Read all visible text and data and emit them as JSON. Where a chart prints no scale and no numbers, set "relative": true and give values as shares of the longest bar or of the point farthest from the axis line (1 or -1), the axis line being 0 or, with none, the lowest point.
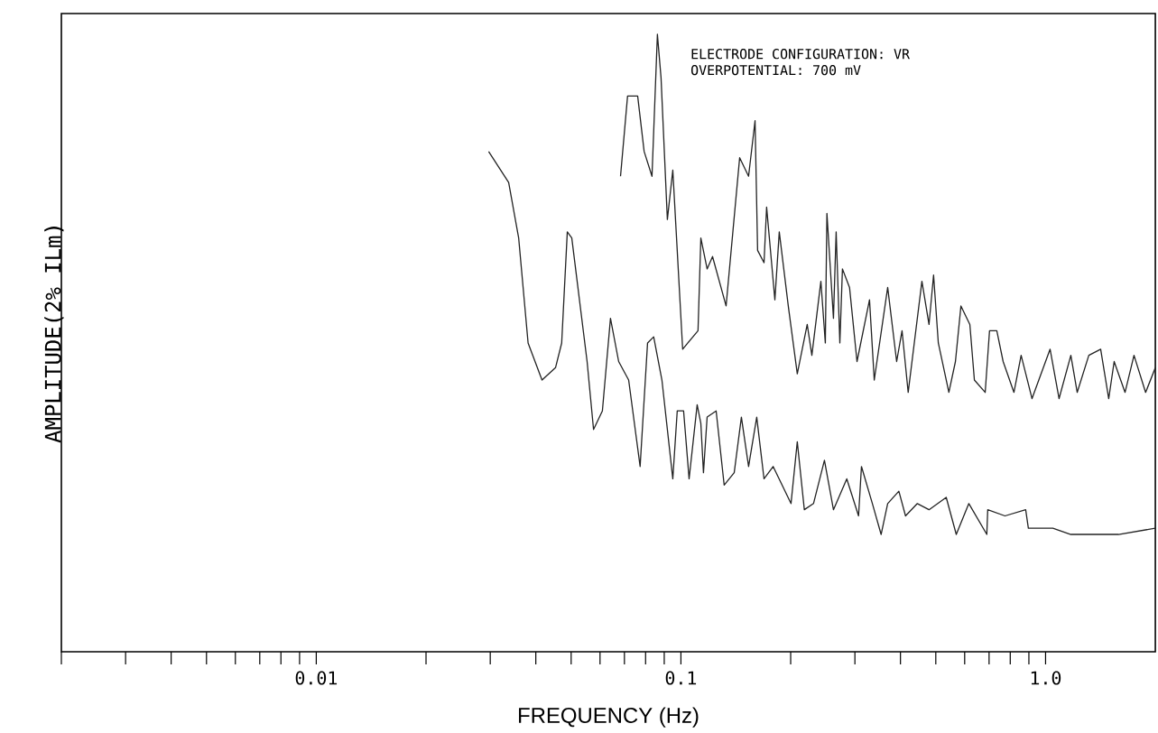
{
  "chart_data": {
    "type": "line",
    "relative": true,
    "log": "x",
    "xlabel": "FREQUENCY (Hz)",
    "ylabel": "AMPLITUDE(2% ILm)",
    "annotations": [
      "ELECTRODE CONFIGURATION: VR",
      "OVERPOTENTIAL: 700 mV"
    ],
    "xlim": [
      0.002,
      2
    ],
    "xticks": [
      {
        "value": 0.002,
        "label": null
      },
      {
        "value": 0.003,
        "label": null
      },
      {
        "value": 0.004,
        "label": null
      },
      {
        "value": 0.005,
        "label": null
      },
      {
        "value": 0.006,
        "label": null
      },
      {
        "value": 0.007,
        "label": null
      },
      {
        "value": 0.008,
        "label": null
      },
      {
        "value": 0.009,
        "label": null
      },
      0.01,
      {
        "value": 0.02,
        "label": null
      },
      {
        "value": 0.03,
        "label": null
      },
      {
        "value": 0.04,
        "label": null
      },
      {
        "value": 0.05,
        "label": null
      },
      {
        "value": 0.06,
        "label": null
      },
      {
        "value": 0.07,
        "label": null
      },
      {
        "value": 0.08,
        "label": null
      },
      {
        "value": 0.09,
        "label": null
      },
      0.1,
      {
        "value": 0.2,
        "label": null
      },
      {
        "value": 0.3,
        "label": null
      },
      {
        "value": 0.4,
        "label": null
      },
      {
        "value": 0.5,
        "label": null
      },
      {
        "value": 0.6,
        "label": null
      },
      {
        "value": 0.7,
        "label": null
      },
      {
        "value": 0.8,
        "label": null
      },
      {
        "value": 0.9,
        "label": null
      },
      {
        "value": 1,
        "label": "1.0"
      }
    ],
    "line_style": "solid",
    "series": [
      {
        "color": "#222222",
        "x": [
          0.0683,
          0.0714,
          0.0761,
          0.0793,
          0.0833,
          0.0862,
          0.0882,
          0.0918,
          0.095,
          0.1011,
          0.1114,
          0.1134,
          0.118,
          0.1221,
          0.133,
          0.1449,
          0.1533,
          0.1597,
          0.1623,
          0.169,
          0.1718,
          0.181,
          0.1861,
          0.197,
          0.2085,
          0.222,
          0.2286,
          0.242,
          0.2489,
          0.2514,
          0.262,
          0.2665,
          0.2728,
          0.2773,
          0.29,
          0.304,
          0.329,
          0.339,
          0.369,
          0.3905,
          0.404,
          0.42,
          0.458,
          0.479,
          0.493,
          0.508,
          0.543,
          0.566,
          0.586,
          0.62,
          0.638,
          0.683,
          0.702,
          0.735,
          0.765,
          0.819,
          0.857,
          0.918,
          1.029,
          1.089,
          1.173,
          1.221,
          1.314,
          1.416,
          1.49,
          1.542,
          1.652,
          1.748,
          1.881,
          2.0
        ],
        "values": [
          0.77,
          0.9,
          0.9,
          0.81,
          0.77,
          1.0,
          0.93,
          0.7,
          0.78,
          0.49,
          0.52,
          0.67,
          0.62,
          0.64,
          0.56,
          0.8,
          0.77,
          0.86,
          0.65,
          0.63,
          0.72,
          0.57,
          0.68,
          0.56,
          0.45,
          0.53,
          0.48,
          0.6,
          0.5,
          0.71,
          0.54,
          0.68,
          0.5,
          0.62,
          0.59,
          0.47,
          0.57,
          0.44,
          0.59,
          0.47,
          0.52,
          0.42,
          0.6,
          0.53,
          0.61,
          0.5,
          0.42,
          0.47,
          0.56,
          0.53,
          0.44,
          0.42,
          0.52,
          0.52,
          0.47,
          0.42,
          0.48,
          0.41,
          0.49,
          0.41,
          0.48,
          0.42,
          0.48,
          0.49,
          0.41,
          0.47,
          0.42,
          0.48,
          0.42,
          0.46
        ]
      },
      {
        "color": "#222222",
        "x": [
          0.0297,
          0.0337,
          0.0359,
          0.0381,
          0.0416,
          0.0453,
          0.0471,
          0.0488,
          0.0502,
          0.0553,
          0.0576,
          0.0609,
          0.0641,
          0.0675,
          0.0719,
          0.0773,
          0.081,
          0.0842,
          0.0887,
          0.095,
          0.0977,
          0.1017,
          0.1053,
          0.1108,
          0.1134,
          0.1153,
          0.118,
          0.1249,
          0.1314,
          0.14,
          0.1465,
          0.1533,
          0.1614,
          0.169,
          0.179,
          0.2004,
          0.2085,
          0.218,
          0.231,
          0.2475,
          0.262,
          0.285,
          0.307,
          0.3127,
          0.335,
          0.354,
          0.369,
          0.396,
          0.413,
          0.445,
          0.479,
          0.534,
          0.569,
          0.616,
          0.69,
          0.694,
          0.774,
          0.882,
          0.897,
          1.047,
          1.173,
          1.369,
          1.585,
          2.0
        ],
        "values": [
          0.81,
          0.76,
          0.67,
          0.5,
          0.44,
          0.46,
          0.5,
          0.68,
          0.67,
          0.47,
          0.36,
          0.39,
          0.54,
          0.47,
          0.44,
          0.3,
          0.5,
          0.51,
          0.44,
          0.28,
          0.39,
          0.39,
          0.28,
          0.4,
          0.37,
          0.29,
          0.38,
          0.39,
          0.27,
          0.29,
          0.38,
          0.3,
          0.38,
          0.28,
          0.3,
          0.24,
          0.34,
          0.23,
          0.24,
          0.31,
          0.23,
          0.28,
          0.22,
          0.3,
          0.24,
          0.19,
          0.24,
          0.26,
          0.22,
          0.24,
          0.23,
          0.25,
          0.19,
          0.24,
          0.19,
          0.23,
          0.22,
          0.23,
          0.2,
          0.2,
          0.19,
          0.19,
          0.19,
          0.2
        ]
      }
    ]
  }
}
